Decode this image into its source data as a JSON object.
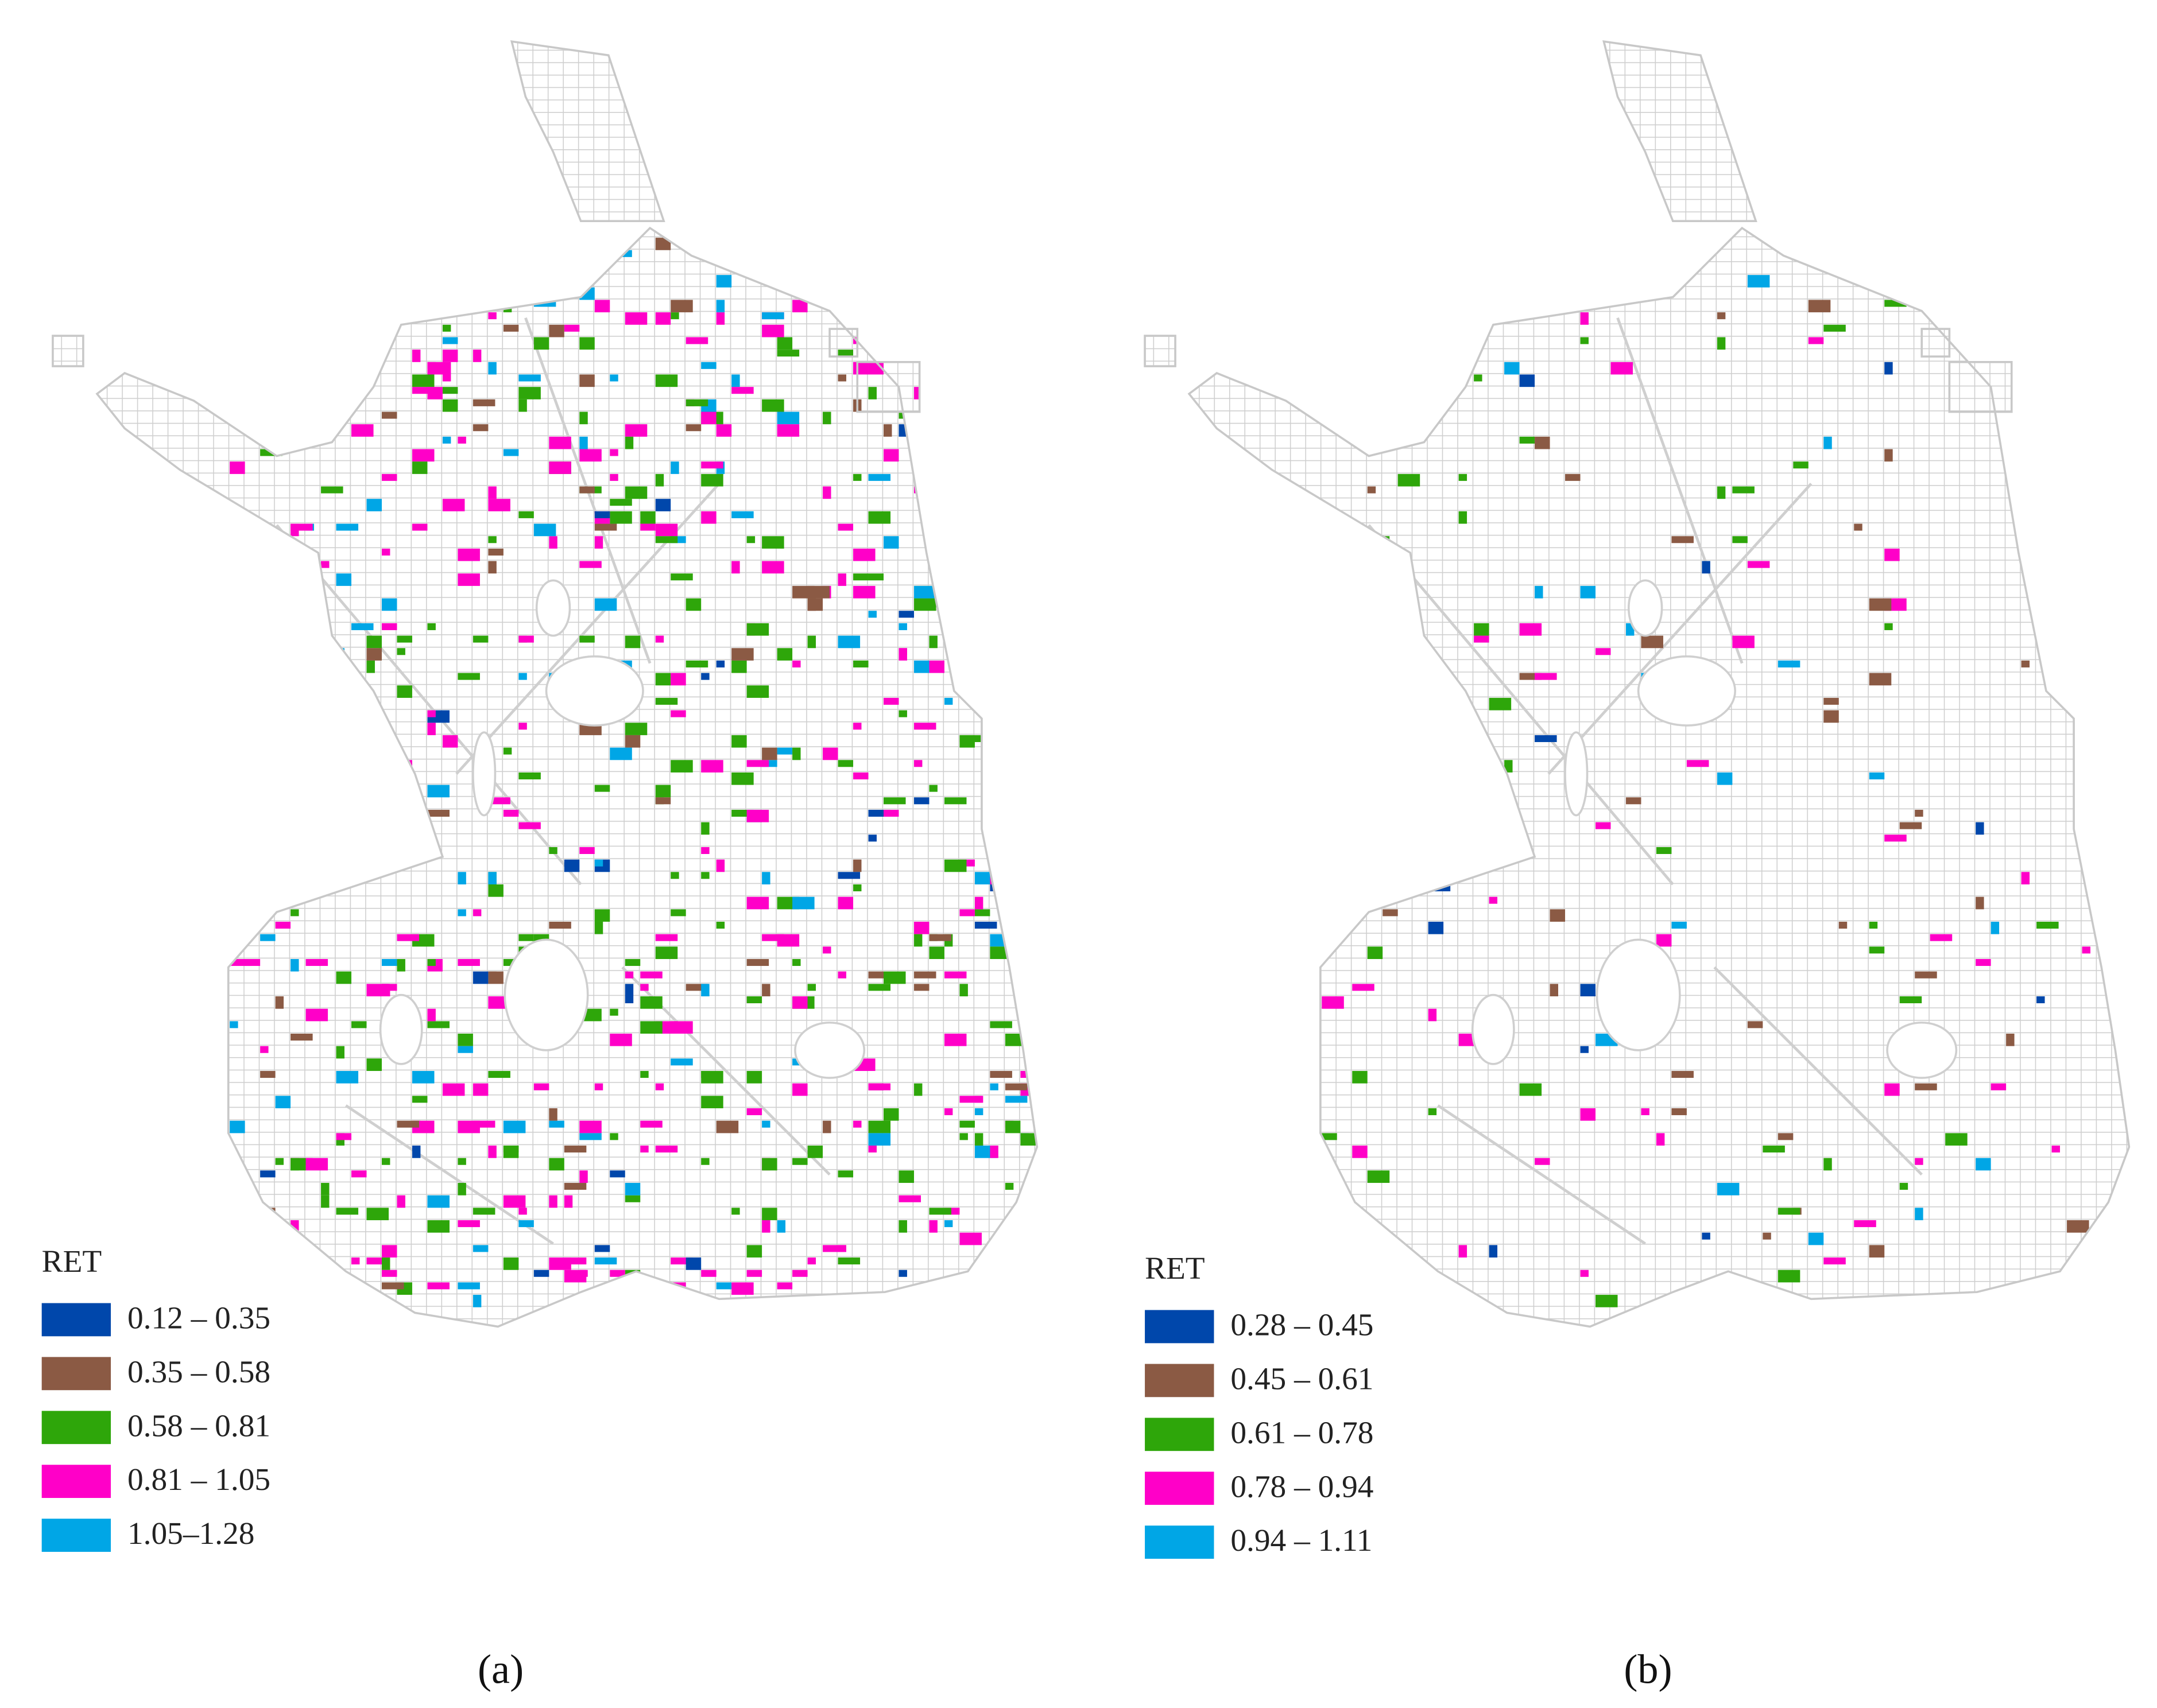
{
  "panels": [
    {
      "label": "(a)",
      "legend_title": "RET",
      "legend": [
        {
          "label": "0.12 – 0.35",
          "color": "#0047ab"
        },
        {
          "label": "0.35 – 0.58",
          "color": "#8b5a44"
        },
        {
          "label": "0.58 – 0.81",
          "color": "#2ea60a"
        },
        {
          "label": "0.81 – 1.05",
          "color": "#ff00c8"
        },
        {
          "label": "1.05–1.28",
          "color": "#00a6e6"
        }
      ]
    },
    {
      "label": "(b)",
      "legend_title": "RET",
      "legend": [
        {
          "label": "0.28 – 0.45",
          "color": "#0047ab"
        },
        {
          "label": "0.45 – 0.61",
          "color": "#8b5a44"
        },
        {
          "label": "0.61 – 0.78",
          "color": "#2ea60a"
        },
        {
          "label": "0.78 – 0.94",
          "color": "#ff00c8"
        },
        {
          "label": "0.94 – 1.11",
          "color": "#00a6e6"
        }
      ]
    }
  ]
}
